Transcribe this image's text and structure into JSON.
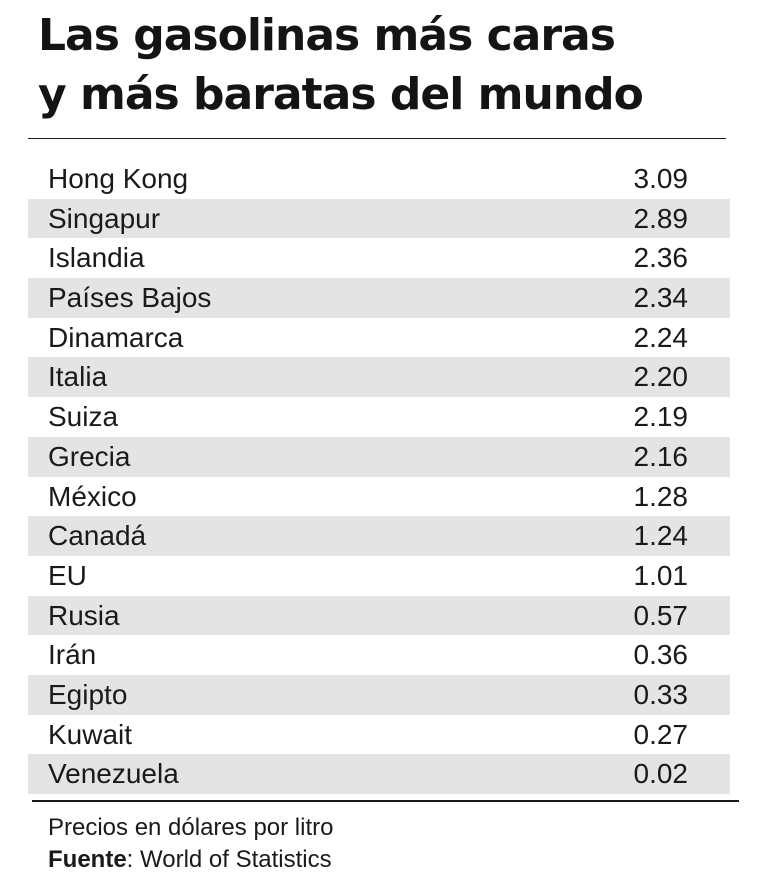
{
  "chart_data": {
    "type": "table",
    "title_line1": "Las gasolinas más caras",
    "title_line2": "y más baratas del mundo",
    "rows": [
      {
        "country": "Hong Kong",
        "value": "3.09"
      },
      {
        "country": "Singapur",
        "value": "2.89"
      },
      {
        "country": "Islandia",
        "value": "2.36"
      },
      {
        "country": "Países Bajos",
        "value": "2.34"
      },
      {
        "country": "Dinamarca",
        "value": "2.24"
      },
      {
        "country": "Italia",
        "value": "2.20"
      },
      {
        "country": "Suiza",
        "value": "2.19"
      },
      {
        "country": "Grecia",
        "value": "2.16"
      },
      {
        "country": "México",
        "value": "1.28"
      },
      {
        "country": "Canadá",
        "value": "1.24"
      },
      {
        "country": "EU",
        "value": "1.01"
      },
      {
        "country": "Rusia",
        "value": "0.57"
      },
      {
        "country": "Irán",
        "value": "0.36"
      },
      {
        "country": "Egipto",
        "value": "0.33"
      },
      {
        "country": "Kuwait",
        "value": "0.27"
      },
      {
        "country": "Venezuela",
        "value": "0.02"
      }
    ],
    "note": "Precios en dólares por litro",
    "source_label": "Fuente",
    "source_text": ": World of Statistics",
    "stripe_color": "#e4e4e4"
  }
}
